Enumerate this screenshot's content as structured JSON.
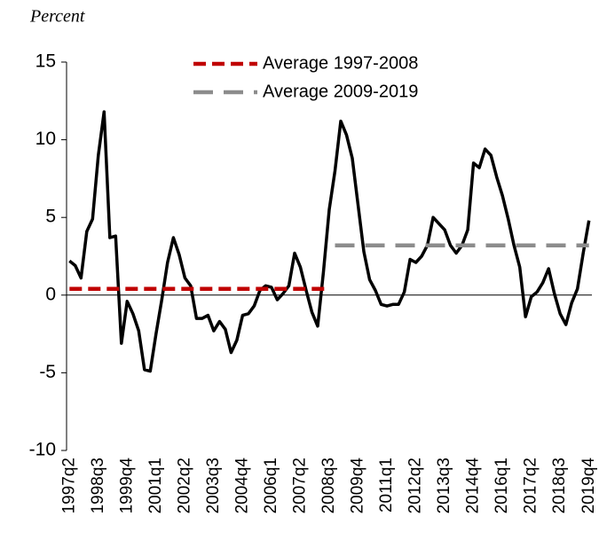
{
  "chart_data": {
    "type": "line",
    "y_label": "Percent",
    "categories": [
      "1997q2",
      null,
      null,
      null,
      null,
      "1998q3",
      null,
      null,
      null,
      null,
      "1999q4",
      null,
      null,
      null,
      null,
      "2001q1",
      null,
      null,
      null,
      null,
      "2002q2",
      null,
      null,
      null,
      null,
      "2003q3",
      null,
      null,
      null,
      null,
      "2004q4",
      null,
      null,
      null,
      null,
      "2006q1",
      null,
      null,
      null,
      null,
      "2007q2",
      null,
      null,
      null,
      null,
      "2008q3",
      null,
      null,
      null,
      null,
      "2009q4",
      null,
      null,
      null,
      null,
      "2011q1",
      null,
      null,
      null,
      null,
      "2012q2",
      null,
      null,
      null,
      null,
      "2013q3",
      null,
      null,
      null,
      null,
      "2014q4",
      null,
      null,
      null,
      null,
      "2016q1",
      null,
      null,
      null,
      null,
      "2017q2",
      null,
      null,
      null,
      null,
      "2018q3",
      null,
      null,
      null,
      null,
      "2019q4"
    ],
    "series": [
      {
        "color": "#000000",
        "values": [
          2.2,
          1.9,
          1.1,
          4.1,
          4.9,
          9.0,
          11.8,
          3.7,
          3.8,
          -3.1,
          -0.4,
          -1.2,
          -2.3,
          -4.8,
          -4.9,
          -2.5,
          -0.3,
          2.1,
          3.7,
          2.6,
          1.1,
          0.6,
          -1.5,
          -1.5,
          -1.3,
          -2.3,
          -1.7,
          -2.2,
          -3.7,
          -2.9,
          -1.3,
          -1.2,
          -0.7,
          0.3,
          0.6,
          0.5,
          -0.3,
          0.1,
          0.6,
          2.7,
          1.8,
          0.3,
          -1.1,
          -2.0,
          1.5,
          5.5,
          8.0,
          11.2,
          10.3,
          8.8,
          5.8,
          2.8,
          1.0,
          0.3,
          -0.6,
          -0.7,
          -0.6,
          -0.6,
          0.2,
          2.3,
          2.1,
          2.5,
          3.2,
          5.0,
          4.6,
          4.2,
          3.2,
          2.7,
          3.2,
          4.2,
          8.5,
          8.2,
          9.4,
          9.0,
          7.6,
          6.4,
          4.9,
          3.2,
          1.8,
          -1.4,
          -0.1,
          0.2,
          0.8,
          1.7,
          0.1,
          -1.2,
          -1.9,
          -0.5,
          0.4,
          2.7,
          4.8
        ]
      },
      {
        "name": "Average 1997-2008",
        "color": "#c00000",
        "dash": "14 7",
        "values": [
          0.4,
          0.4,
          0.4,
          0.4,
          0.4,
          0.4,
          0.4,
          0.4,
          0.4,
          0.4,
          0.4,
          0.4,
          0.4,
          0.4,
          0.4,
          0.4,
          0.4,
          0.4,
          0.4,
          0.4,
          0.4,
          0.4,
          0.4,
          0.4,
          0.4,
          0.4,
          0.4,
          0.4,
          0.4,
          0.4,
          0.4,
          0.4,
          0.4,
          0.4,
          0.4,
          0.4,
          0.4,
          0.4,
          0.4,
          0.4,
          0.4,
          0.4,
          0.4,
          0.4,
          0.4,
          0.4,
          null,
          null,
          null,
          null,
          null,
          null,
          null,
          null,
          null,
          null,
          null,
          null,
          null,
          null,
          null,
          null,
          null,
          null,
          null,
          null,
          null,
          null,
          null,
          null,
          null,
          null,
          null,
          null,
          null,
          null,
          null,
          null,
          null,
          null,
          null,
          null,
          null,
          null,
          null,
          null,
          null,
          null,
          null,
          null,
          null
        ]
      },
      {
        "name": "Average 2009-2019",
        "color": "#8c8c8c",
        "dash": "22 12",
        "values": [
          null,
          null,
          null,
          null,
          null,
          null,
          null,
          null,
          null,
          null,
          null,
          null,
          null,
          null,
          null,
          null,
          null,
          null,
          null,
          null,
          null,
          null,
          null,
          null,
          null,
          null,
          null,
          null,
          null,
          null,
          null,
          null,
          null,
          null,
          null,
          null,
          null,
          null,
          null,
          null,
          null,
          null,
          null,
          null,
          null,
          null,
          3.2,
          3.2,
          3.2,
          3.2,
          3.2,
          3.2,
          3.2,
          3.2,
          3.2,
          3.2,
          3.2,
          3.2,
          3.2,
          3.2,
          3.2,
          3.2,
          3.2,
          3.2,
          3.2,
          3.2,
          3.2,
          3.2,
          3.2,
          3.2,
          3.2,
          3.2,
          3.2,
          3.2,
          3.2,
          3.2,
          3.2,
          3.2,
          3.2,
          3.2,
          3.2,
          3.2,
          3.2,
          3.2,
          3.2,
          3.2,
          3.2,
          3.2,
          3.2,
          3.2,
          3.2
        ]
      }
    ],
    "ylim": [
      -10,
      15
    ],
    "yticks": [
      -10,
      -5,
      0,
      5,
      10,
      15
    ],
    "legend": "top"
  }
}
